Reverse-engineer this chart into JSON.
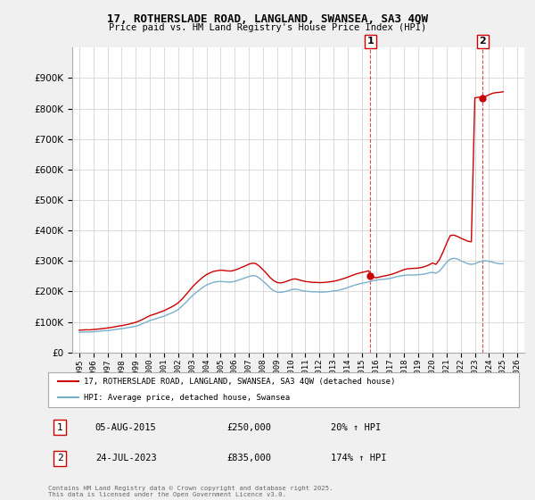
{
  "title_line1": "17, ROTHERSLADE ROAD, LANGLAND, SWANSEA, SA3 4QW",
  "title_line2": "Price paid vs. HM Land Registry's House Price Index (HPI)",
  "legend_label1": "17, ROTHERSLADE ROAD, LANGLAND, SWANSEA, SA3 4QW (detached house)",
  "legend_label2": "HPI: Average price, detached house, Swansea",
  "annotation1_label": "1",
  "annotation1_date": "05-AUG-2015",
  "annotation1_price": "£250,000",
  "annotation1_hpi": "20% ↑ HPI",
  "annotation1_year": 2015.6,
  "annotation1_value": 250000,
  "annotation2_label": "2",
  "annotation2_date": "24-JUL-2023",
  "annotation2_price": "£835,000",
  "annotation2_hpi": "174% ↑ HPI",
  "annotation2_year": 2023.55,
  "annotation2_value": 835000,
  "ylim": [
    0,
    1000000
  ],
  "yticks": [
    0,
    100000,
    200000,
    300000,
    400000,
    500000,
    600000,
    700000,
    800000,
    900000
  ],
  "xlim_min": 1994.5,
  "xlim_max": 2026.5,
  "red_color": "#cc0000",
  "blue_color": "#7aafcc",
  "background_color": "#f0f0f0",
  "plot_bg_color": "#ffffff",
  "grid_color": "#cccccc",
  "copyright_text": "Contains HM Land Registry data © Crown copyright and database right 2025.\nThis data is licensed under the Open Government Licence v3.0.",
  "hpi_years": [
    1995.0,
    1995.25,
    1995.5,
    1995.75,
    1996.0,
    1996.25,
    1996.5,
    1996.75,
    1997.0,
    1997.25,
    1997.5,
    1997.75,
    1998.0,
    1998.25,
    1998.5,
    1998.75,
    1999.0,
    1999.25,
    1999.5,
    1999.75,
    2000.0,
    2000.25,
    2000.5,
    2000.75,
    2001.0,
    2001.25,
    2001.5,
    2001.75,
    2002.0,
    2002.25,
    2002.5,
    2002.75,
    2003.0,
    2003.25,
    2003.5,
    2003.75,
    2004.0,
    2004.25,
    2004.5,
    2004.75,
    2005.0,
    2005.25,
    2005.5,
    2005.75,
    2006.0,
    2006.25,
    2006.5,
    2006.75,
    2007.0,
    2007.25,
    2007.5,
    2007.75,
    2008.0,
    2008.25,
    2008.5,
    2008.75,
    2009.0,
    2009.25,
    2009.5,
    2009.75,
    2010.0,
    2010.25,
    2010.5,
    2010.75,
    2011.0,
    2011.25,
    2011.5,
    2011.75,
    2012.0,
    2012.25,
    2012.5,
    2012.75,
    2013.0,
    2013.25,
    2013.5,
    2013.75,
    2014.0,
    2014.25,
    2014.5,
    2014.75,
    2015.0,
    2015.25,
    2015.5,
    2015.75,
    2016.0,
    2016.25,
    2016.5,
    2016.75,
    2017.0,
    2017.25,
    2017.5,
    2017.75,
    2018.0,
    2018.25,
    2018.5,
    2018.75,
    2019.0,
    2019.25,
    2019.5,
    2019.75,
    2020.0,
    2020.25,
    2020.5,
    2020.75,
    2021.0,
    2021.25,
    2021.5,
    2021.75,
    2022.0,
    2022.25,
    2022.5,
    2022.75,
    2023.0,
    2023.25,
    2023.5,
    2023.75,
    2024.0,
    2024.25,
    2024.5,
    2024.75,
    2025.0
  ],
  "hpi_values": [
    66000,
    67000,
    67500,
    67000,
    68000,
    69000,
    70000,
    71500,
    72000,
    73500,
    75000,
    77000,
    78000,
    80000,
    82000,
    84000,
    86000,
    90000,
    95000,
    100000,
    105000,
    108000,
    112000,
    116000,
    119000,
    124000,
    129000,
    134000,
    141000,
    151000,
    162000,
    174000,
    186000,
    196000,
    205000,
    214000,
    221000,
    226000,
    230000,
    232000,
    233000,
    232000,
    231000,
    231000,
    233000,
    237000,
    241000,
    245000,
    249000,
    252000,
    251000,
    244000,
    234000,
    224000,
    212000,
    203000,
    198000,
    197000,
    199000,
    202000,
    206000,
    208000,
    206000,
    203000,
    201000,
    200000,
    199000,
    199000,
    198000,
    198000,
    199000,
    200000,
    202000,
    203000,
    206000,
    209000,
    213000,
    217000,
    221000,
    224000,
    227000,
    229000,
    232000,
    235000,
    237000,
    239000,
    240000,
    241000,
    243000,
    246000,
    249000,
    251000,
    253000,
    254000,
    254000,
    254000,
    255000,
    256000,
    258000,
    261000,
    263000,
    260000,
    267000,
    281000,
    296000,
    306000,
    309000,
    307000,
    301000,
    296000,
    291000,
    289000,
    291000,
    296000,
    299000,
    301000,
    299000,
    296000,
    293000,
    291000,
    291000
  ],
  "red_years": [
    1995.0,
    1995.25,
    1995.5,
    1995.75,
    1996.0,
    1996.25,
    1996.5,
    1996.75,
    1997.0,
    1997.25,
    1997.5,
    1997.75,
    1998.0,
    1998.25,
    1998.5,
    1998.75,
    1999.0,
    1999.25,
    1999.5,
    1999.75,
    2000.0,
    2000.25,
    2000.5,
    2000.75,
    2001.0,
    2001.25,
    2001.5,
    2001.75,
    2002.0,
    2002.25,
    2002.5,
    2002.75,
    2003.0,
    2003.25,
    2003.5,
    2003.75,
    2004.0,
    2004.25,
    2004.5,
    2004.75,
    2005.0,
    2005.25,
    2005.5,
    2005.75,
    2006.0,
    2006.25,
    2006.5,
    2006.75,
    2007.0,
    2007.25,
    2007.5,
    2007.75,
    2008.0,
    2008.25,
    2008.5,
    2008.75,
    2009.0,
    2009.25,
    2009.5,
    2009.75,
    2010.0,
    2010.25,
    2010.5,
    2010.75,
    2011.0,
    2011.25,
    2011.5,
    2011.75,
    2012.0,
    2012.25,
    2012.5,
    2012.75,
    2013.0,
    2013.25,
    2013.5,
    2013.75,
    2014.0,
    2014.25,
    2014.5,
    2014.75,
    2015.0,
    2015.25,
    2015.5,
    2015.6,
    2016.0,
    2016.25,
    2016.5,
    2016.75,
    2017.0,
    2017.25,
    2017.5,
    2017.75,
    2018.0,
    2018.25,
    2018.5,
    2018.75,
    2019.0,
    2019.25,
    2019.5,
    2019.75,
    2020.0,
    2020.25,
    2020.5,
    2020.75,
    2021.0,
    2021.25,
    2021.5,
    2021.75,
    2022.0,
    2022.25,
    2022.5,
    2022.75,
    2023.0,
    2023.25,
    2023.55,
    2023.75,
    2024.0,
    2024.25,
    2024.5,
    2024.75,
    2025.0
  ],
  "red_values": [
    73000,
    74000,
    74500,
    74200,
    75500,
    76500,
    77500,
    79000,
    80500,
    82000,
    84000,
    86500,
    88000,
    90500,
    93000,
    96000,
    99000,
    103500,
    109000,
    115000,
    121000,
    124500,
    128500,
    133000,
    137000,
    143000,
    148500,
    155000,
    163000,
    174000,
    187000,
    200500,
    214500,
    226500,
    237000,
    247000,
    255500,
    261000,
    266000,
    268000,
    270000,
    269000,
    267500,
    267000,
    270000,
    274000,
    279500,
    284000,
    289500,
    293000,
    291500,
    283000,
    271500,
    259500,
    246000,
    236000,
    229500,
    228000,
    230500,
    234500,
    239000,
    241500,
    239000,
    235500,
    233000,
    231500,
    230000,
    230000,
    229000,
    229500,
    230500,
    232000,
    233500,
    236000,
    239500,
    243000,
    247000,
    251500,
    256000,
    259500,
    262500,
    265000,
    268000,
    250000,
    245000,
    247500,
    250000,
    252500,
    255000,
    258500,
    263000,
    267500,
    272000,
    274500,
    275500,
    276000,
    277000,
    279000,
    282500,
    287000,
    293500,
    289000,
    305000,
    330000,
    358000,
    383000,
    385000,
    381000,
    375000,
    370000,
    365000,
    363000,
    835000,
    837000,
    835000,
    840000,
    845000,
    850000,
    852000,
    853000,
    855000
  ]
}
